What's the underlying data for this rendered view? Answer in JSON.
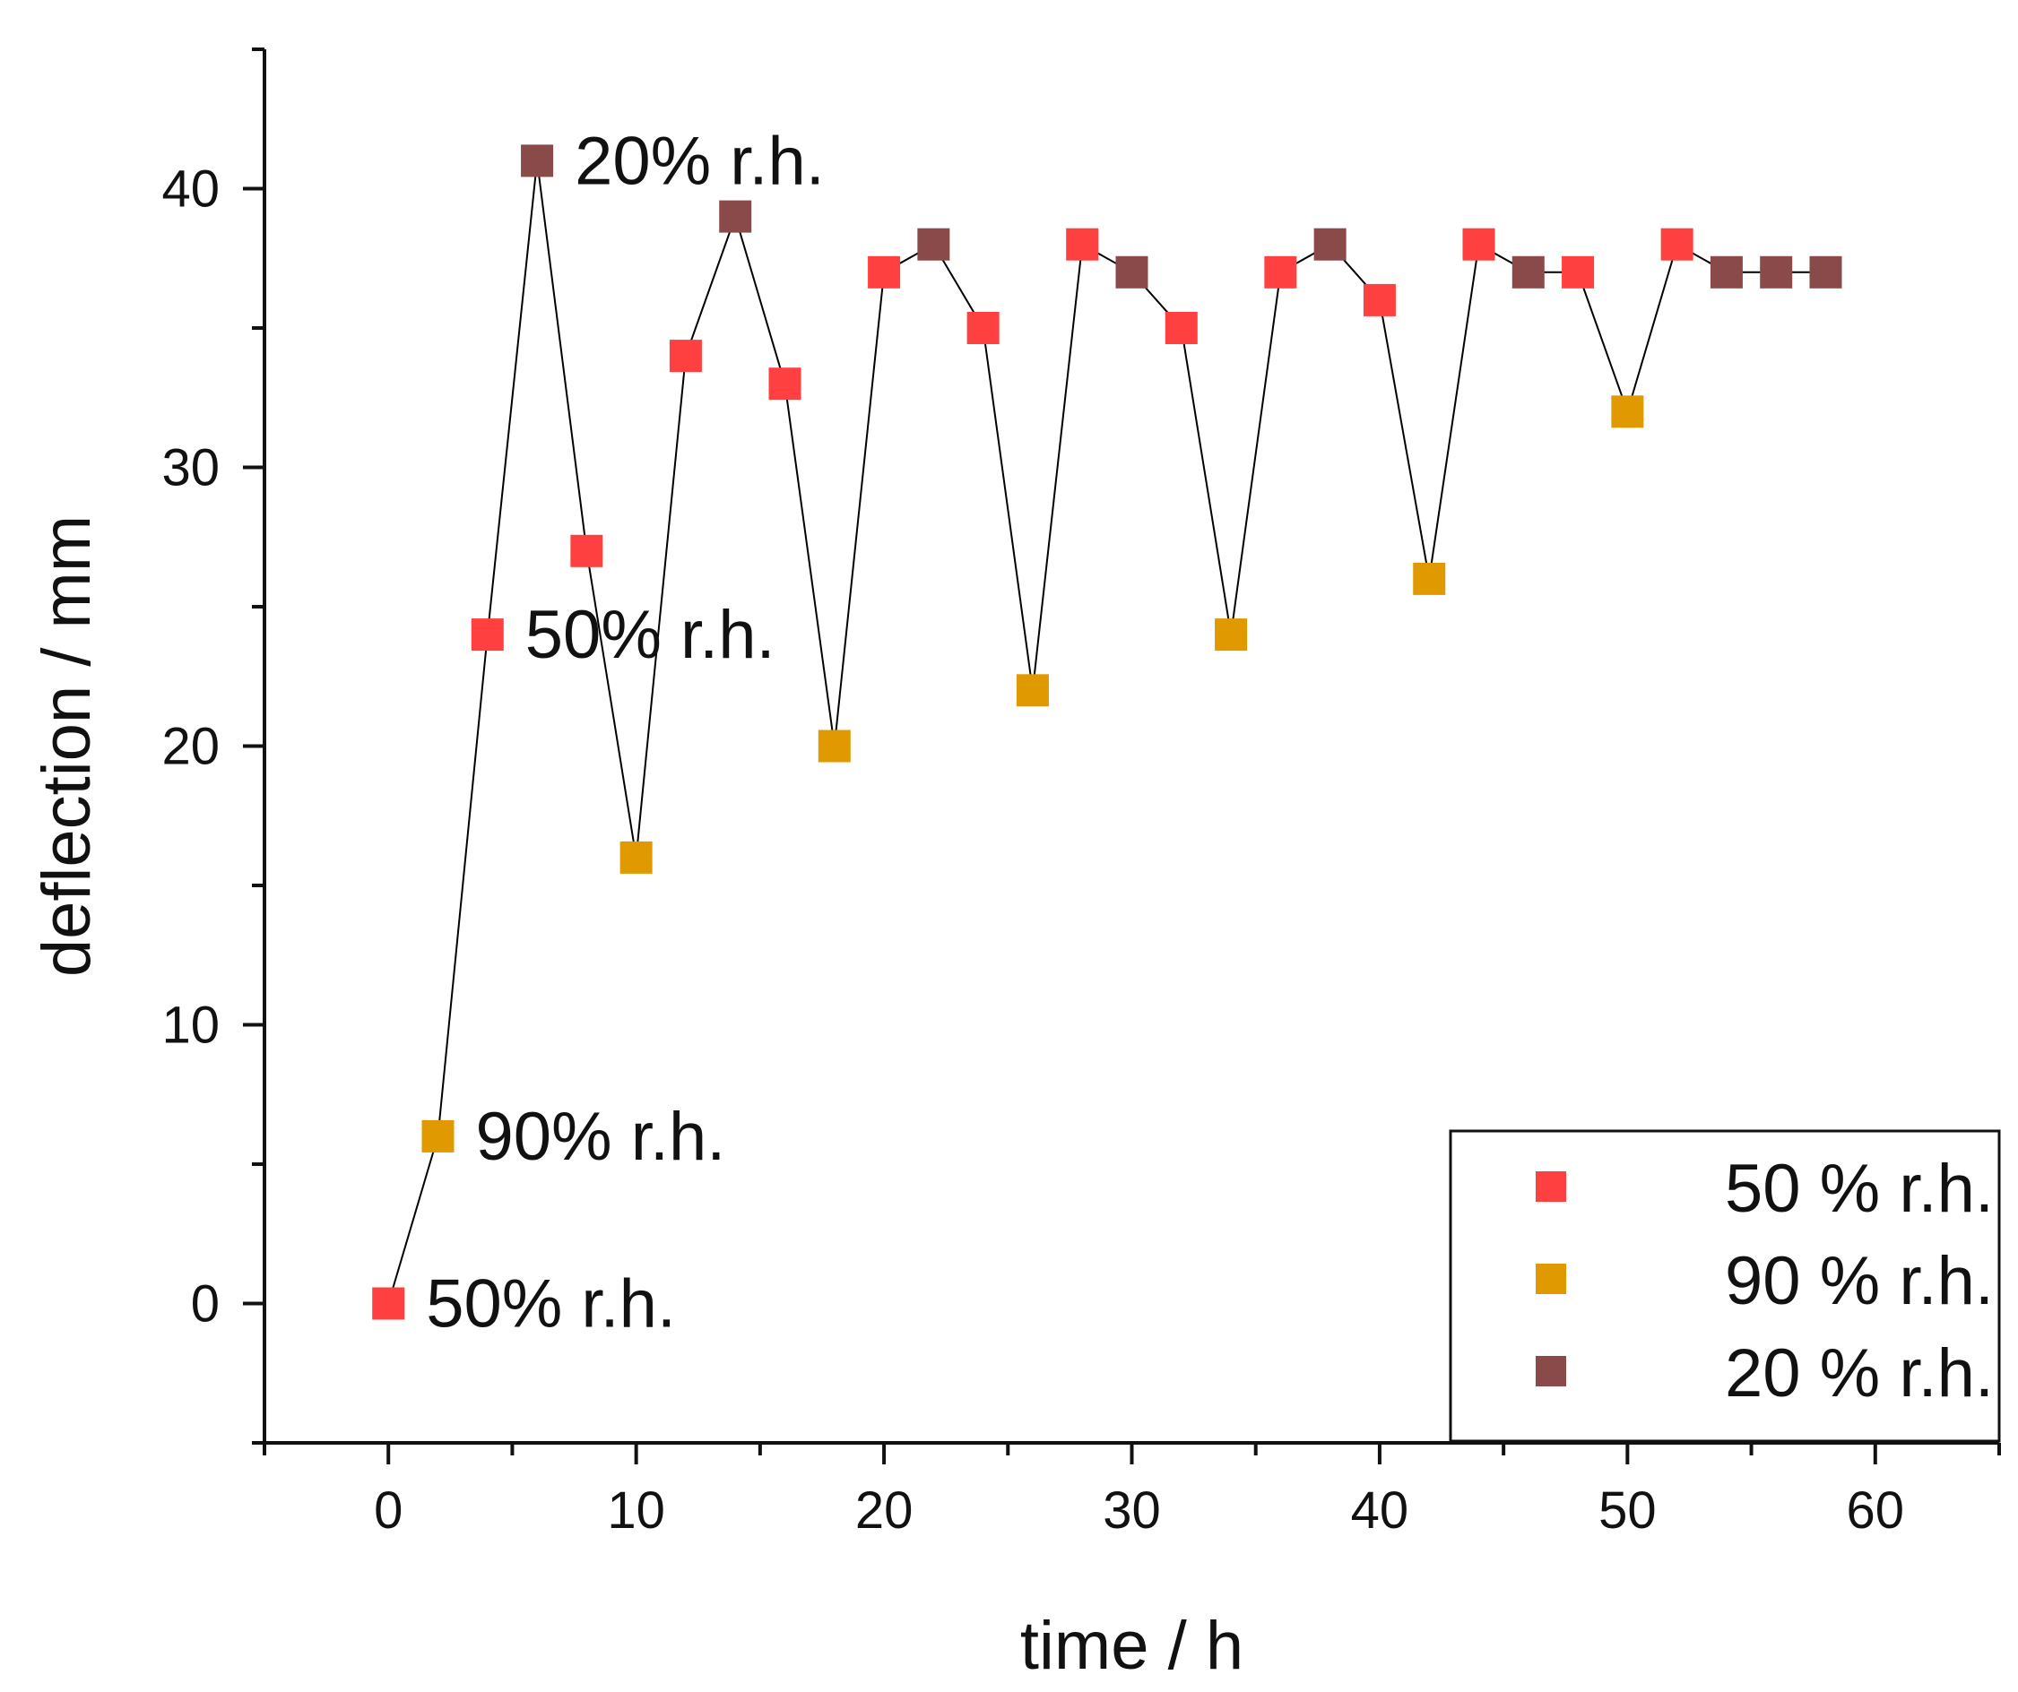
{
  "chart_data": {
    "type": "scatter",
    "title": "",
    "xlabel": "time / h",
    "ylabel": "deflection / mm",
    "xlim": [
      -5,
      65
    ],
    "ylim": [
      -5,
      45
    ],
    "xticks": [
      0,
      10,
      20,
      30,
      40,
      50,
      60
    ],
    "yticks": [
      0,
      10,
      20,
      30,
      40
    ],
    "grid": false,
    "connect_points": true,
    "line_color": "#000000",
    "legend_position": "bottom-right",
    "series": [
      {
        "name": "50 % r.h.",
        "color": "#ff4040",
        "points": [
          [
            0,
            0
          ],
          [
            4,
            24
          ],
          [
            8,
            27
          ],
          [
            12,
            34
          ],
          [
            16,
            33
          ],
          [
            20,
            37
          ],
          [
            24,
            35
          ],
          [
            28,
            38
          ],
          [
            32,
            35
          ],
          [
            36,
            37
          ],
          [
            40,
            36
          ],
          [
            44,
            38
          ],
          [
            48,
            37
          ],
          [
            52,
            38
          ]
        ]
      },
      {
        "name": "90 % r.h.",
        "color": "#e09a00",
        "points": [
          [
            2,
            6
          ],
          [
            10,
            16
          ],
          [
            18,
            20
          ],
          [
            26,
            22
          ],
          [
            34,
            24
          ],
          [
            42,
            26
          ],
          [
            50,
            32
          ]
        ]
      },
      {
        "name": "20 % r.h.",
        "color": "#8b4a4a",
        "points": [
          [
            6,
            41
          ],
          [
            14,
            39
          ],
          [
            22,
            38
          ],
          [
            30,
            37
          ],
          [
            38,
            38
          ],
          [
            46,
            37
          ],
          [
            54,
            37
          ],
          [
            56,
            37
          ],
          [
            58,
            37
          ]
        ]
      }
    ],
    "annotations": [
      {
        "text": "20% r.h.",
        "x": 6,
        "y": 41
      },
      {
        "text": "50% r.h.",
        "x": 4,
        "y": 24
      },
      {
        "text": "90% r.h.",
        "x": 2,
        "y": 6
      },
      {
        "text": "50% r.h.",
        "x": 0,
        "y": 0
      }
    ]
  }
}
